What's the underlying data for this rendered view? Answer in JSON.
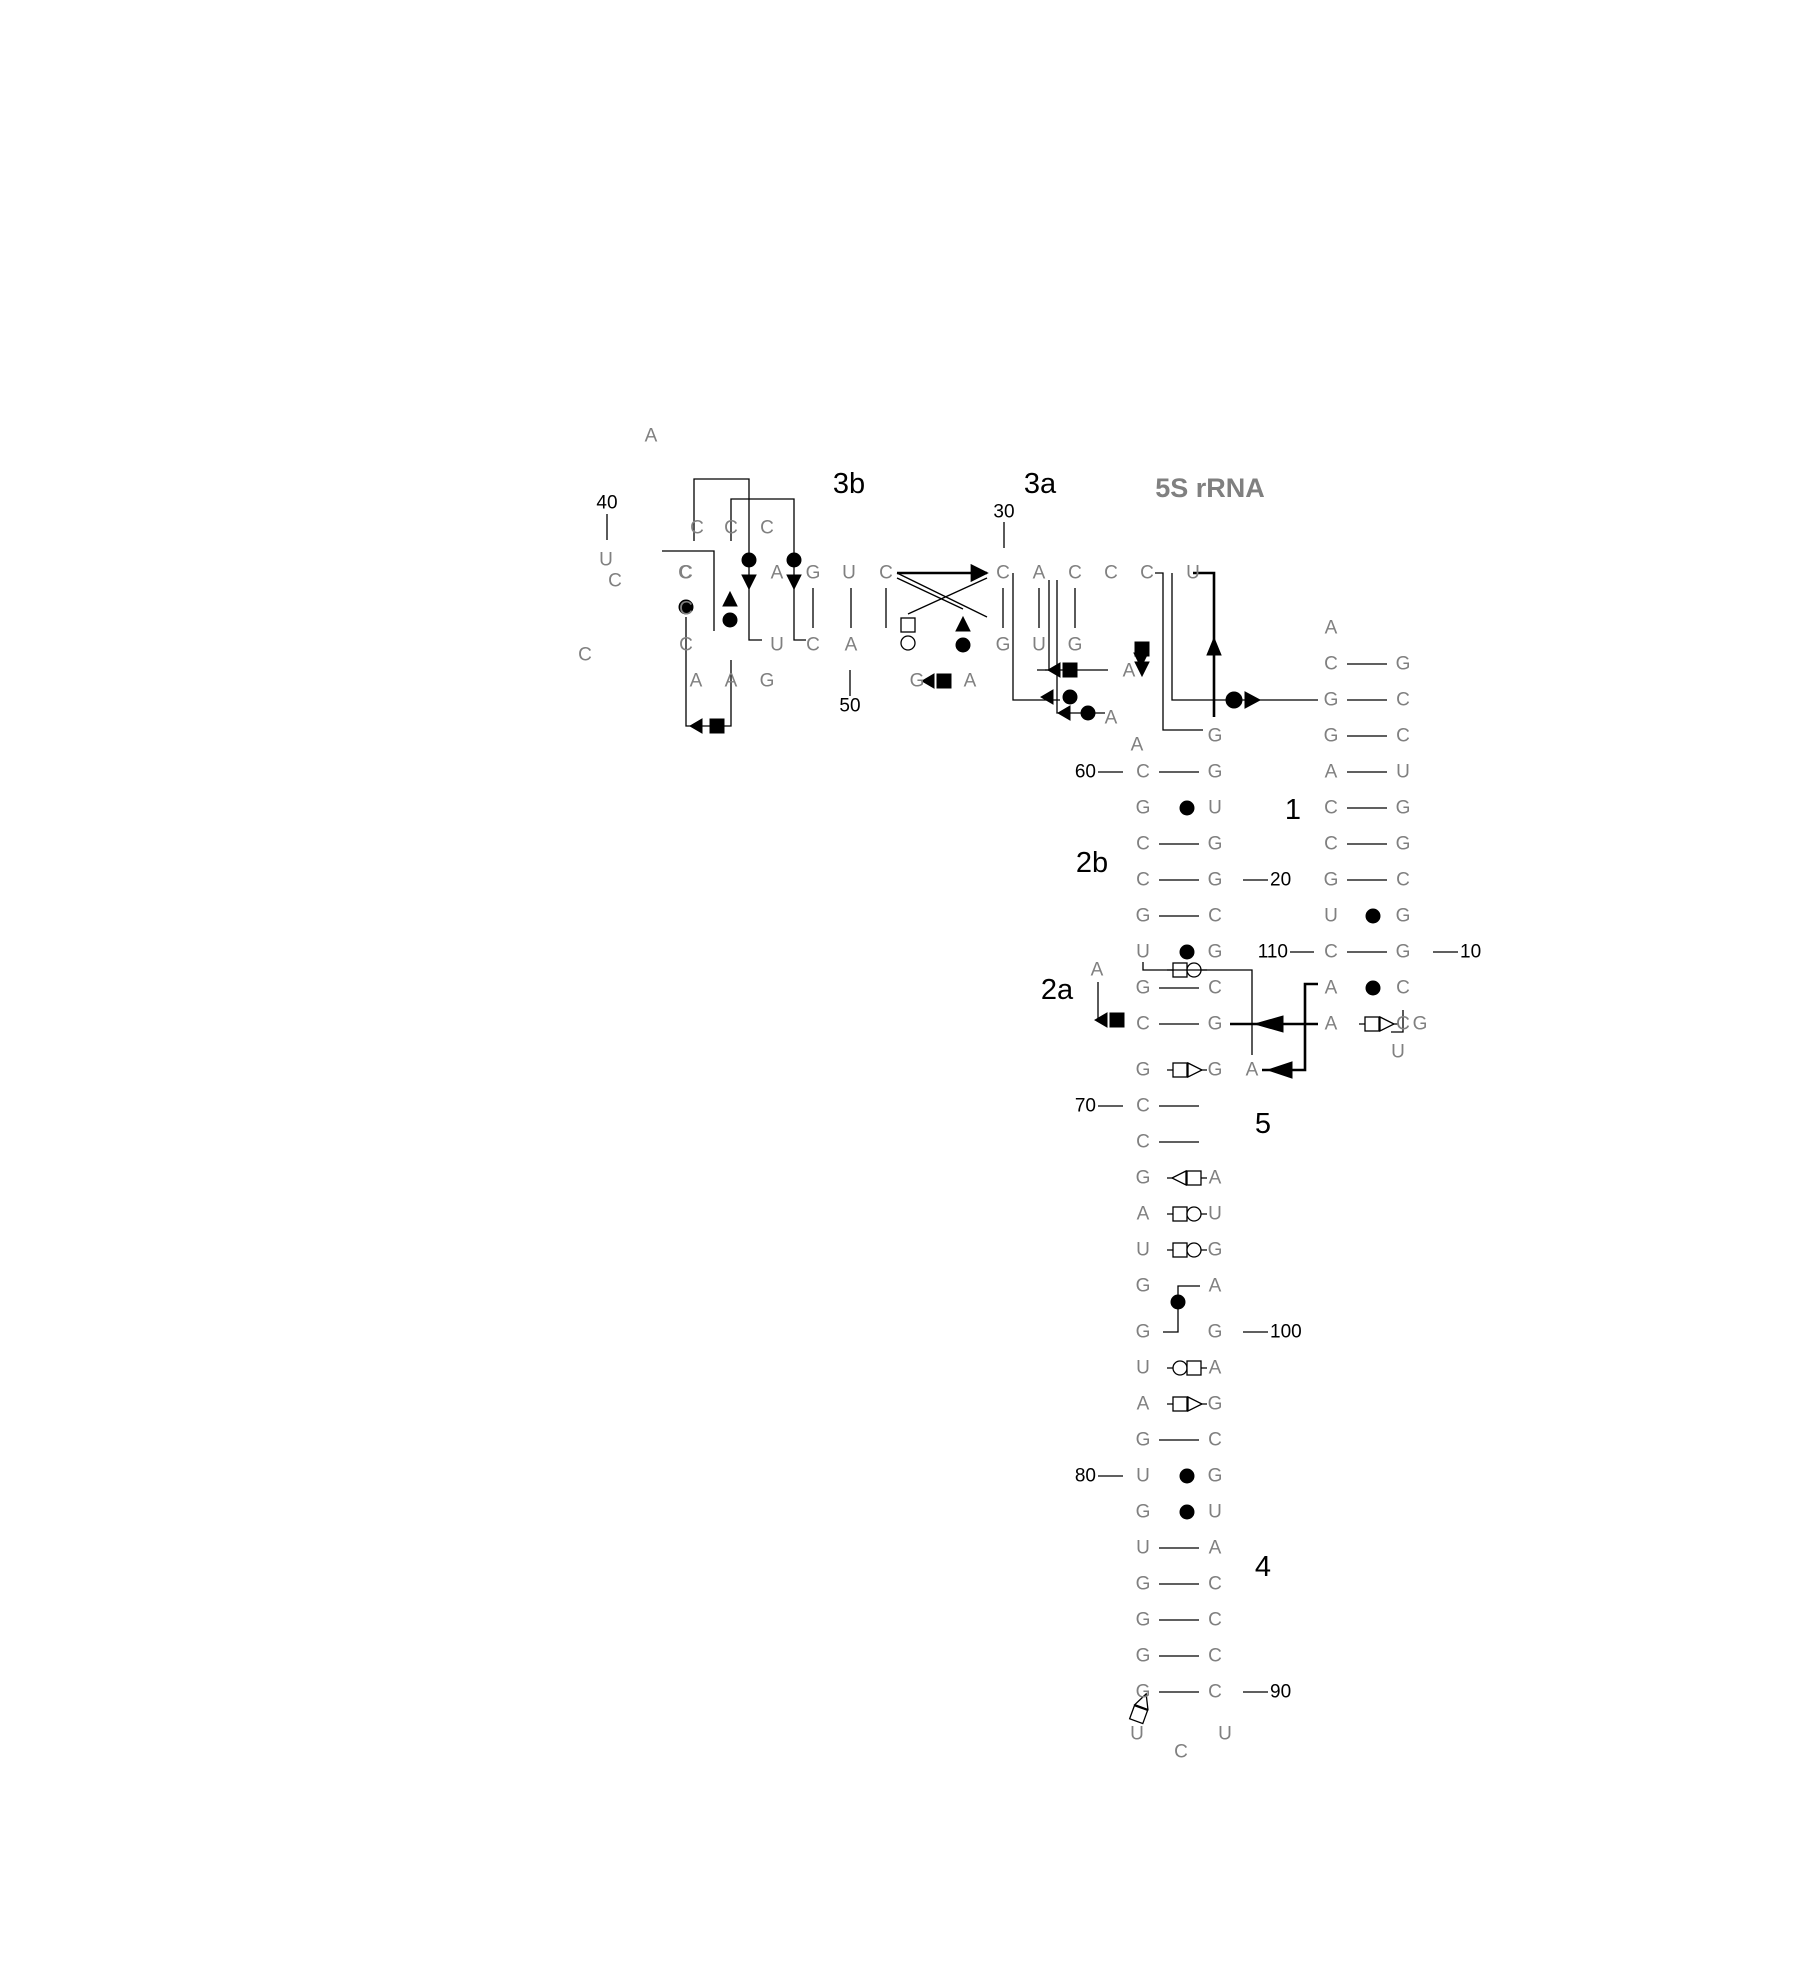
{
  "title": "5S rRNA",
  "helix_labels": [
    "1",
    "2a",
    "2b",
    "3a",
    "3b",
    "4",
    "5"
  ],
  "position_labels": [
    "10",
    "20",
    "30",
    "40",
    "50",
    "60",
    "70",
    "80",
    "90",
    "100",
    "110"
  ],
  "nucleotides": {
    "helix1_5prime": [
      "A",
      "C",
      "G",
      "G",
      "A",
      "C",
      "C",
      "G",
      "U",
      "C",
      "A",
      "A"
    ],
    "helix1_3prime": [
      "G",
      "C",
      "C",
      "U",
      "G",
      "G",
      "C",
      "G",
      "G",
      "C",
      "C",
      "G",
      "U"
    ],
    "helix2_3prime": [
      "G",
      "G",
      "U",
      "G",
      "G",
      "C",
      "G",
      "C",
      "G",
      "G",
      "A"
    ],
    "helix2_5prime": [
      "A",
      "C",
      "G",
      "C",
      "C",
      "G",
      "U",
      "G",
      "C",
      "G",
      "C",
      "C",
      "A"
    ],
    "stem_left": [
      "G",
      "A",
      "U",
      "G",
      "G",
      "U",
      "A",
      "G",
      "U",
      "G",
      "U",
      "G",
      "G",
      "G",
      "G",
      "U"
    ],
    "stem_right": [
      "A",
      "U",
      "G",
      "A",
      "G",
      "A",
      "G",
      "C",
      "G",
      "U",
      "A",
      "C",
      "C",
      "C",
      "C"
    ],
    "hairpin_loop4": [
      "C",
      "U"
    ],
    "helix3_top": [
      "C",
      "A",
      "C",
      "C",
      "C",
      "U",
      "C",
      "U",
      "G",
      "A",
      "C",
      "A",
      "U"
    ],
    "helix3_bottom": [
      "G",
      "U",
      "G",
      "A",
      "A",
      "A",
      "G",
      "A",
      "C",
      "U",
      "C",
      "C"
    ],
    "hairpin_loop3": [
      "C",
      "C",
      "C",
      "C",
      "A",
      "A",
      "G",
      "C",
      "C"
    ]
  },
  "legend": {
    "canonical_pair": "cis Watson-Crick (line)",
    "wobble_pair": "filled circle",
    "sugar_hoogsteen": "square-circle",
    "sugar_edge": "triangle"
  }
}
